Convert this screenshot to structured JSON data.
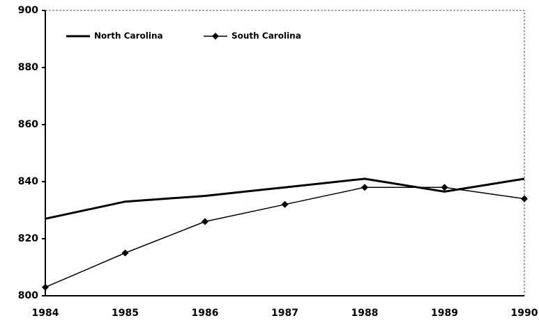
{
  "chart_data": {
    "type": "line",
    "categories": [
      "1984",
      "1985",
      "1986",
      "1987",
      "1988",
      "1989",
      "1990"
    ],
    "series": [
      {
        "name": "North Carolina",
        "color": "#000000",
        "values": [
          827,
          833,
          835,
          838,
          841,
          836.5,
          841
        ]
      },
      {
        "name": "South Carolina",
        "color": "#000000",
        "values": [
          803,
          815,
          826,
          832,
          838,
          838,
          834
        ]
      }
    ],
    "ylim": [
      800,
      900
    ],
    "yticks": [
      800,
      820,
      840,
      860,
      880,
      900
    ],
    "legend": "upper left"
  }
}
